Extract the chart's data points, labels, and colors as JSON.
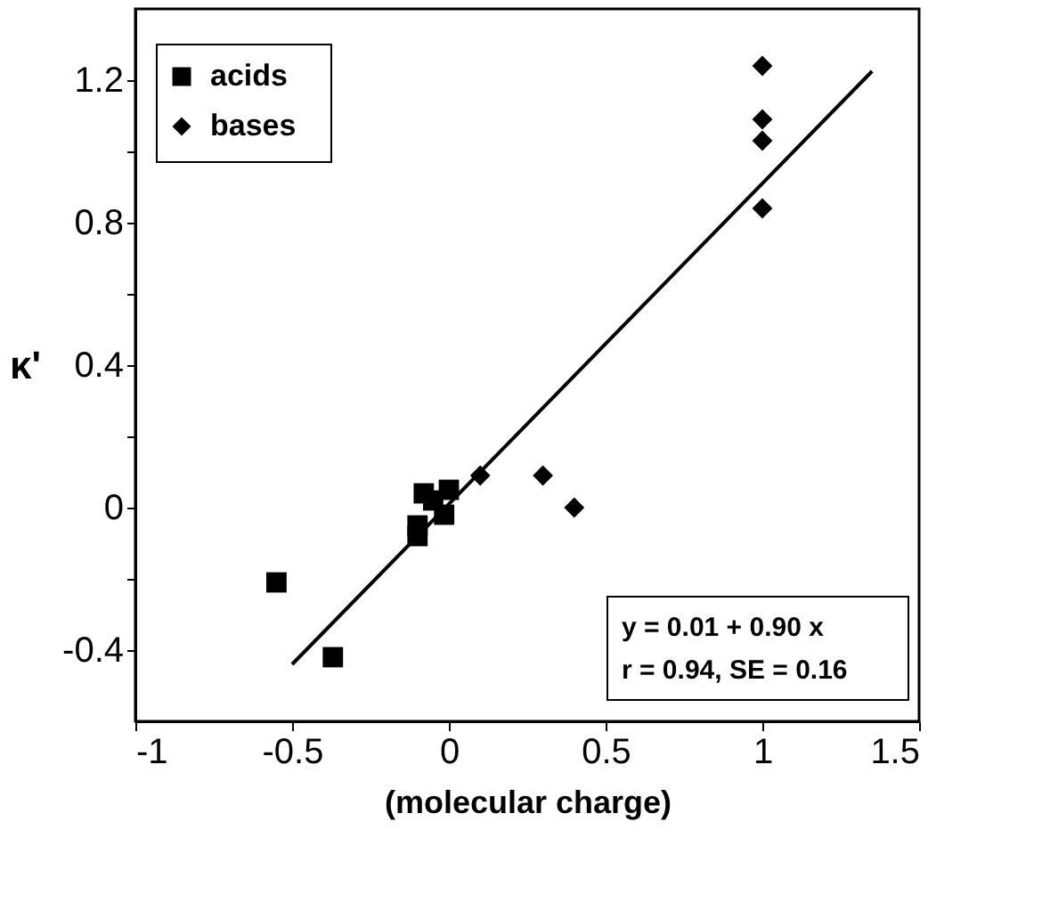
{
  "chart_data": {
    "type": "scatter",
    "xlabel": "(molecular charge)",
    "ylabel": "κ'",
    "series": [
      {
        "name": "acids",
        "color": "#000000",
        "marker": "square",
        "x": [
          -0.55,
          -0.37,
          -0.1,
          -0.1,
          -0.08,
          -0.05,
          -0.02,
          -0.015,
          0.0
        ],
        "values": [
          -0.21,
          -0.42,
          -0.05,
          -0.08,
          0.04,
          0.02,
          null,
          -0.02,
          0.05
        ]
      },
      {
        "name": "bases",
        "color": "#000000",
        "marker": "diamond",
        "x": [
          1.0,
          1.0,
          1.0,
          1.0,
          0.1,
          0.3,
          0.4
        ],
        "values": [
          1.24,
          1.09,
          1.03,
          0.84,
          0.09,
          0.09,
          0.0
        ]
      },
      {
        "type": "line",
        "color": "#000000",
        "line_style": "solid",
        "x": [
          -0.5,
          1.35
        ],
        "values": [
          -0.44,
          1.225
        ]
      }
    ],
    "xlim": [
      -1,
      1.5
    ],
    "xticks": [
      -1,
      -0.5,
      0,
      0.5,
      1,
      1.5
    ],
    "ylim": [
      -0.6,
      1.4
    ],
    "yticks": [
      -0.4,
      {
        "value": -0.2,
        "label": null
      },
      0,
      {
        "value": 0.2,
        "label": null
      },
      0.4,
      {
        "value": 0.6,
        "label": null
      },
      0.8,
      {
        "value": 1.0,
        "label": null
      },
      1.2
    ],
    "grid": false,
    "legend": "top left",
    "annotations": [
      "y = 0.01 + 0.90 x",
      "r = 0.94, SE = 0.16"
    ]
  }
}
